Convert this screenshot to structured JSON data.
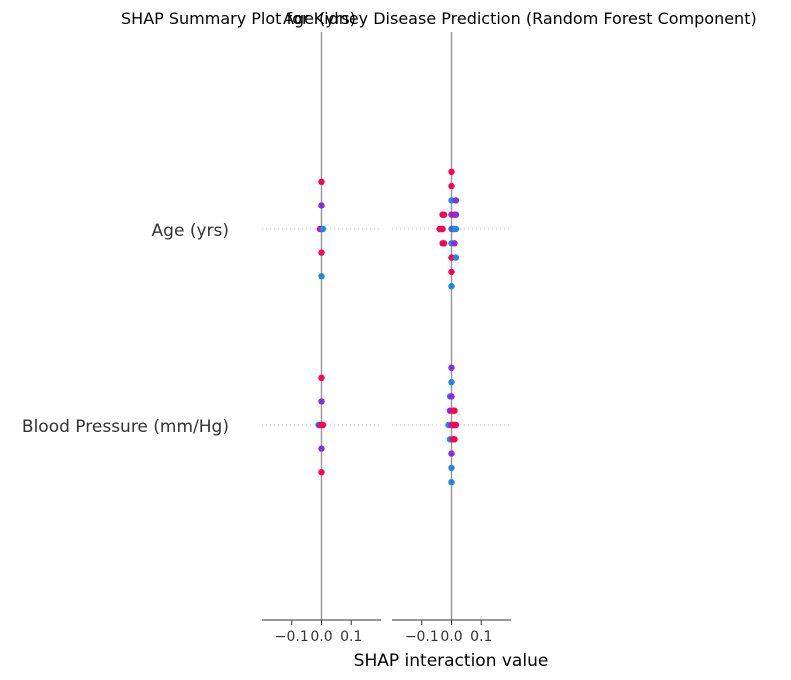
{
  "chart_data": {
    "type": "scatter",
    "title_left": "SHAP Summary Plot for Kidney Disease Prediction (Random Forest Component)",
    "title_right": "Age (yrs)",
    "xlabel": "SHAP interaction value",
    "features": [
      "Age (yrs)",
      "Blood Pressure (mm/Hg)"
    ],
    "xlim": [
      -0.2,
      0.2
    ],
    "xticks": [
      {
        "value": -0.1,
        "label": "−0.1"
      },
      {
        "value": 0.0,
        "label": "0.0"
      },
      {
        "value": 0.1,
        "label": "0.1"
      }
    ],
    "colors": {
      "high": "#ff0052",
      "mid": "#8a2be2",
      "low": "#1e88e5",
      "zero_line": "#999999",
      "axis": "#333333",
      "grid": "#cccccc"
    },
    "panels": [
      {
        "name": "Age (yrs)",
        "rows": [
          {
            "feature": "Age (yrs)",
            "points": [
              {
                "x": 0.0,
                "y": 2,
                "c": "high"
              },
              {
                "x": 0.0,
                "y": 1,
                "c": "mid"
              },
              {
                "x": -0.005,
                "y": 0,
                "c": "high"
              },
              {
                "x": 0.0,
                "y": 0,
                "c": "mid"
              },
              {
                "x": 0.005,
                "y": 0,
                "c": "low"
              },
              {
                "x": 0.0,
                "y": -1,
                "c": "high"
              },
              {
                "x": 0.0,
                "y": -2,
                "c": "low"
              }
            ]
          },
          {
            "feature": "Blood Pressure (mm/Hg)",
            "points": [
              {
                "x": 0.0,
                "y": 2,
                "c": "high"
              },
              {
                "x": 0.0,
                "y": 1,
                "c": "mid"
              },
              {
                "x": -0.01,
                "y": 0,
                "c": "low"
              },
              {
                "x": -0.005,
                "y": 0,
                "c": "mid"
              },
              {
                "x": 0.0,
                "y": 0,
                "c": "high"
              },
              {
                "x": 0.005,
                "y": 0,
                "c": "high"
              },
              {
                "x": 0.0,
                "y": -1,
                "c": "mid"
              },
              {
                "x": 0.0,
                "y": -2,
                "c": "high"
              }
            ]
          }
        ]
      },
      {
        "name": "Age (yrs) (right)",
        "rows": [
          {
            "feature": "Age (yrs)",
            "points": [
              {
                "x": 0.0,
                "y": 4,
                "c": "high"
              },
              {
                "x": 0.0,
                "y": 3,
                "c": "high"
              },
              {
                "x": 0.0,
                "y": 2,
                "c": "low"
              },
              {
                "x": 0.015,
                "y": 2,
                "c": "mid"
              },
              {
                "x": -0.03,
                "y": 1,
                "c": "high"
              },
              {
                "x": -0.025,
                "y": 1,
                "c": "high"
              },
              {
                "x": 0.0,
                "y": 1,
                "c": "mid"
              },
              {
                "x": 0.01,
                "y": 1,
                "c": "high"
              },
              {
                "x": 0.015,
                "y": 1,
                "c": "mid"
              },
              {
                "x": -0.04,
                "y": 0,
                "c": "high"
              },
              {
                "x": -0.035,
                "y": 0,
                "c": "high"
              },
              {
                "x": -0.03,
                "y": 0,
                "c": "high"
              },
              {
                "x": 0.0,
                "y": 0,
                "c": "low"
              },
              {
                "x": 0.005,
                "y": 0,
                "c": "mid"
              },
              {
                "x": 0.01,
                "y": 0,
                "c": "low"
              },
              {
                "x": 0.015,
                "y": 0,
                "c": "low"
              },
              {
                "x": -0.03,
                "y": -1,
                "c": "high"
              },
              {
                "x": -0.025,
                "y": -1,
                "c": "high"
              },
              {
                "x": 0.0,
                "y": -1,
                "c": "low"
              },
              {
                "x": 0.01,
                "y": -1,
                "c": "mid"
              },
              {
                "x": 0.0,
                "y": -2,
                "c": "high"
              },
              {
                "x": 0.015,
                "y": -2,
                "c": "low"
              },
              {
                "x": 0.0,
                "y": -3,
                "c": "high"
              },
              {
                "x": 0.0,
                "y": -4,
                "c": "low"
              }
            ]
          },
          {
            "feature": "Blood Pressure (mm/Hg)",
            "points": [
              {
                "x": 0.0,
                "y": 4,
                "c": "mid"
              },
              {
                "x": 0.0,
                "y": 3,
                "c": "low"
              },
              {
                "x": -0.005,
                "y": 2,
                "c": "low"
              },
              {
                "x": 0.0,
                "y": 2,
                "c": "mid"
              },
              {
                "x": -0.005,
                "y": 1,
                "c": "mid"
              },
              {
                "x": 0.005,
                "y": 1,
                "c": "high"
              },
              {
                "x": 0.01,
                "y": 1,
                "c": "high"
              },
              {
                "x": -0.01,
                "y": 0,
                "c": "low"
              },
              {
                "x": 0.0,
                "y": 0,
                "c": "mid"
              },
              {
                "x": 0.005,
                "y": 0,
                "c": "high"
              },
              {
                "x": 0.01,
                "y": 0,
                "c": "high"
              },
              {
                "x": 0.015,
                "y": 0,
                "c": "high"
              },
              {
                "x": -0.005,
                "y": -1,
                "c": "low"
              },
              {
                "x": 0.005,
                "y": -1,
                "c": "high"
              },
              {
                "x": 0.01,
                "y": -1,
                "c": "high"
              },
              {
                "x": 0.0,
                "y": -2,
                "c": "mid"
              },
              {
                "x": 0.0,
                "y": -3,
                "c": "low"
              },
              {
                "x": 0.0,
                "y": -4,
                "c": "low"
              }
            ]
          }
        ]
      }
    ]
  }
}
